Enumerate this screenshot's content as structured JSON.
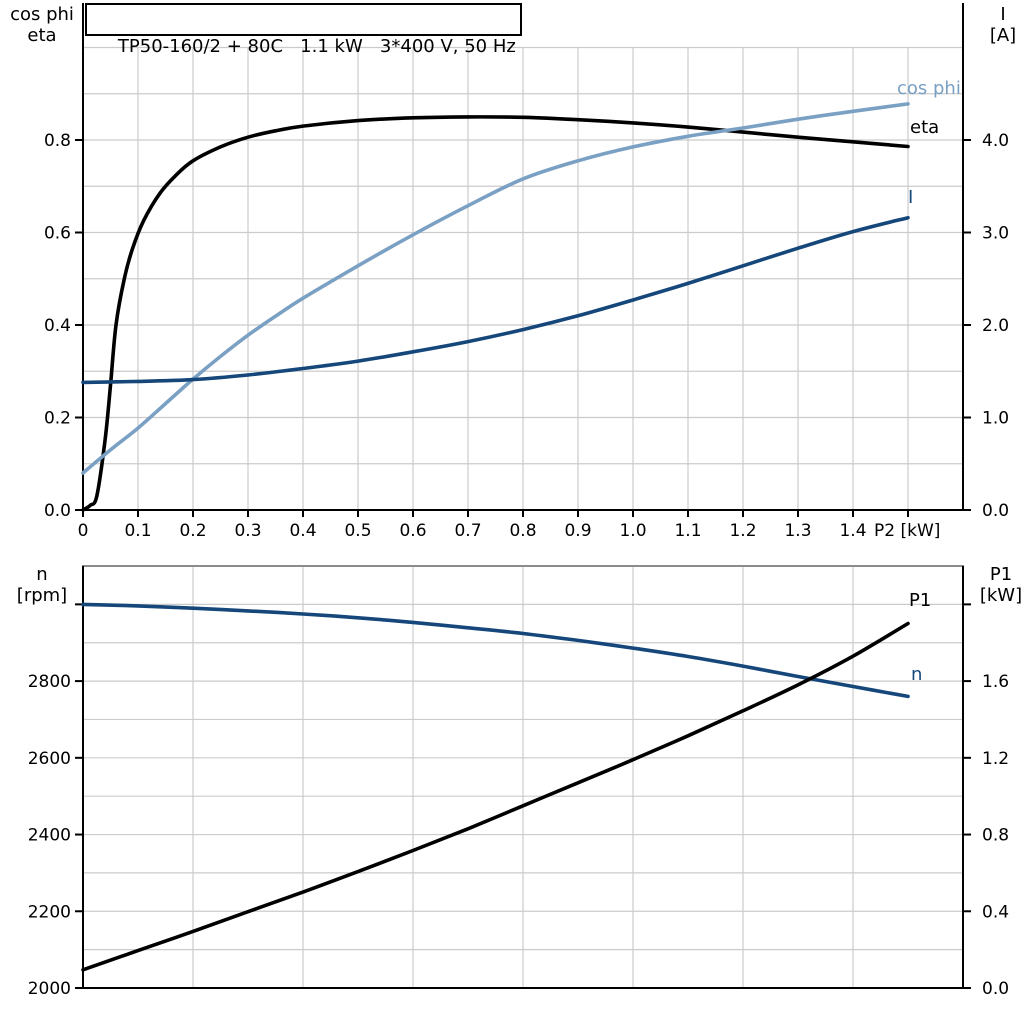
{
  "title_box": {
    "text": "TP50-160/2 + 80C   1.1 kW   3*400 V, 50 Hz"
  },
  "colors": {
    "black": "#000000",
    "light_blue": "#7AA0C4",
    "dark_blue": "#16477B",
    "grid": "#CBCBCB",
    "frame_gray": "#8C8C8C"
  },
  "chart_data": [
    {
      "id": "top",
      "type": "line",
      "left_axis": {
        "title_lines": [
          "cos phi",
          "eta"
        ],
        "min": 0,
        "max": 1.0,
        "grid_step": 0.1,
        "ticks": [
          0,
          0.2,
          0.4,
          0.6,
          0.8
        ],
        "tick_labels": [
          "0.0",
          "0.2",
          "0.4",
          "0.6",
          "0.8"
        ]
      },
      "right_axis": {
        "title_lines": [
          "I",
          "[A]"
        ],
        "min": 0,
        "max": 5.0,
        "ticks": [
          0,
          1,
          2,
          3,
          4
        ],
        "tick_labels": [
          "0.0",
          "1.0",
          "2.0",
          "3.0",
          "4.0"
        ]
      },
      "x_axis": {
        "label": "P2 [kW]",
        "min": 0,
        "max": 1.6,
        "grid_step": 0.1,
        "ticks": [
          0,
          0.1,
          0.2,
          0.3,
          0.4,
          0.5,
          0.6,
          0.7,
          0.8,
          0.9,
          1.0,
          1.1,
          1.2,
          1.3,
          1.4,
          1.5
        ],
        "tick_labels": [
          "0",
          "0.1",
          "0.2",
          "0.3",
          "0.4",
          "0.5",
          "0.6",
          "0.7",
          "0.8",
          "0.9",
          "1.0",
          "1.1",
          "1.2",
          "1.3",
          "1.4",
          ""
        ]
      },
      "series": [
        {
          "id": "eta-curve",
          "label": "eta",
          "axis": "left",
          "color": "#000000",
          "x": [
            0,
            0.013,
            0.025,
            0.04,
            0.05,
            0.06,
            0.075,
            0.09,
            0.11,
            0.14,
            0.17,
            0.2,
            0.25,
            0.3,
            0.35,
            0.4,
            0.5,
            0.6,
            0.7,
            0.8,
            0.9,
            1.0,
            1.1,
            1.2,
            1.3,
            1.4,
            1.5
          ],
          "y": [
            0,
            0.01,
            0.03,
            0.15,
            0.27,
            0.4,
            0.5,
            0.565,
            0.625,
            0.685,
            0.725,
            0.755,
            0.785,
            0.806,
            0.82,
            0.83,
            0.842,
            0.848,
            0.85,
            0.849,
            0.844,
            0.837,
            0.828,
            0.817,
            0.806,
            0.796,
            0.786
          ]
        },
        {
          "id": "cos-phi-curve",
          "label": "cos phi",
          "axis": "left",
          "color": "#7AA0C4",
          "x": [
            0,
            0.05,
            0.1,
            0.15,
            0.2,
            0.25,
            0.3,
            0.35,
            0.4,
            0.5,
            0.6,
            0.7,
            0.8,
            0.9,
            1.0,
            1.1,
            1.2,
            1.3,
            1.4,
            1.5
          ],
          "y": [
            0.08,
            0.13,
            0.177,
            0.23,
            0.283,
            0.332,
            0.378,
            0.419,
            0.458,
            0.528,
            0.595,
            0.658,
            0.716,
            0.755,
            0.785,
            0.808,
            0.826,
            0.845,
            0.862,
            0.878
          ]
        },
        {
          "id": "current-curve",
          "label": "I",
          "axis": "right",
          "color": "#16477B",
          "x": [
            0,
            0.1,
            0.2,
            0.3,
            0.4,
            0.5,
            0.6,
            0.7,
            0.8,
            0.9,
            1.0,
            1.1,
            1.2,
            1.3,
            1.4,
            1.5
          ],
          "y": [
            1.38,
            1.39,
            1.41,
            1.46,
            1.53,
            1.61,
            1.71,
            1.82,
            1.95,
            2.1,
            2.27,
            2.45,
            2.64,
            2.83,
            3.01,
            3.16
          ]
        }
      ]
    },
    {
      "id": "bottom",
      "type": "line",
      "left_axis": {
        "title_lines": [
          "n",
          "[rpm]"
        ],
        "min": 2000,
        "max": 3100,
        "grid_step": 100,
        "ticks": [
          2000,
          2200,
          2400,
          2600,
          2800,
          3000
        ],
        "tick_labels": [
          "2000",
          "2200",
          "2400",
          "2600",
          "2800",
          ""
        ]
      },
      "right_axis": {
        "title_lines": [
          "P1",
          "[kW]"
        ],
        "min": 0,
        "max": 2.2,
        "ticks": [
          0,
          0.4,
          0.8,
          1.2,
          1.6,
          2.0
        ],
        "tick_labels": [
          "0.0",
          "0.4",
          "0.8",
          "1.2",
          "1.6",
          ""
        ]
      },
      "x_axis": {
        "label": "",
        "min": 0,
        "max": 1.6,
        "grid_step": 0.2,
        "ticks": [],
        "tick_labels": []
      },
      "series": [
        {
          "id": "speed-curve",
          "label": "n",
          "axis": "left",
          "color": "#16477B",
          "x": [
            0,
            0.1,
            0.2,
            0.3,
            0.4,
            0.5,
            0.6,
            0.7,
            0.8,
            0.9,
            1.0,
            1.1,
            1.2,
            1.3,
            1.4,
            1.5
          ],
          "y": [
            3000,
            2996,
            2990,
            2983,
            2975,
            2965,
            2953,
            2939,
            2924,
            2906,
            2886,
            2864,
            2839,
            2812,
            2786,
            2760
          ]
        },
        {
          "id": "p1-curve",
          "label": "P1",
          "axis": "right",
          "color": "#000000",
          "x": [
            0,
            0.1,
            0.2,
            0.3,
            0.4,
            0.5,
            0.6,
            0.7,
            0.8,
            0.9,
            1.0,
            1.1,
            1.2,
            1.3,
            1.4,
            1.5
          ],
          "y": [
            0.095,
            0.195,
            0.295,
            0.398,
            0.5,
            0.607,
            0.717,
            0.83,
            0.95,
            1.07,
            1.19,
            1.315,
            1.445,
            1.58,
            1.73,
            1.9
          ]
        }
      ]
    }
  ]
}
